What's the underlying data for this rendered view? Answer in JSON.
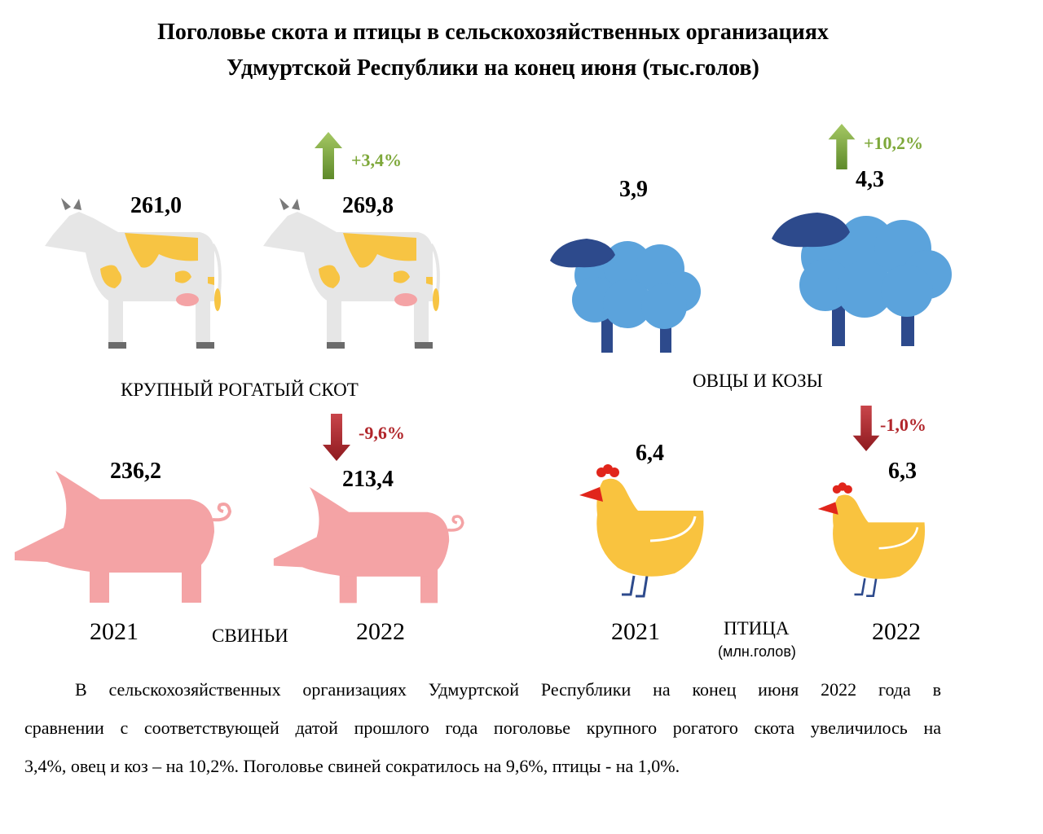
{
  "title_line1": "Поголовье скота и птицы в сельскохозяйственных организациях",
  "title_line2": "Удмуртской Республики на конец июня (тыс.голов)",
  "chart_data": {
    "type": "infographic",
    "groups": [
      {
        "name": "КРУПНЫЙ РОГАТЫЙ СКОТ",
        "x": [
          "2021",
          "2022"
        ],
        "values": [
          261.0,
          269.8
        ],
        "labels": [
          "261,0",
          "269,8"
        ],
        "change": "+3,4%",
        "direction": "up"
      },
      {
        "name": "ОВЦЫ И КОЗЫ",
        "x": [
          "2021",
          "2022"
        ],
        "values": [
          3.9,
          4.3
        ],
        "labels": [
          "3,9",
          "4,3"
        ],
        "change": "+10,2%",
        "direction": "up"
      },
      {
        "name": "СВИНЬИ",
        "x": [
          "2021",
          "2022"
        ],
        "values": [
          236.2,
          213.4
        ],
        "labels": [
          "236,2",
          "213,4"
        ],
        "change": "-9,6%",
        "direction": "down"
      },
      {
        "name": "ПТИЦА",
        "unit": "(млн.голов)",
        "x": [
          "2021",
          "2022"
        ],
        "values": [
          6.4,
          6.3
        ],
        "labels": [
          "6,4",
          "6,3"
        ],
        "change": "-1,0%",
        "direction": "down"
      }
    ],
    "colors": {
      "up": "#7ea83a",
      "down": "#b1262b",
      "cow_body": "#e6e6e6",
      "cow_spots": "#f7c443",
      "sheep": "#5ba3dc",
      "sheep_head": "#2d4a8c",
      "pig": "#f4a3a5",
      "chicken": "#f9c33f",
      "beak": "#e1251b"
    }
  },
  "years": {
    "left": "2021",
    "right": "2022"
  },
  "paragraph": {
    "line1": "В сельскохозяйственных организациях Удмуртской Республики на конец июня 2022 года в",
    "line2": "сравнении с соответствующей датой  прошлого года поголовье крупного рогатого скота увеличилось на",
    "line3": "3,4%, овец и коз – на 10,2%.  Поголовье свиней сократилось на 9,6%, птицы - на 1,0%."
  }
}
